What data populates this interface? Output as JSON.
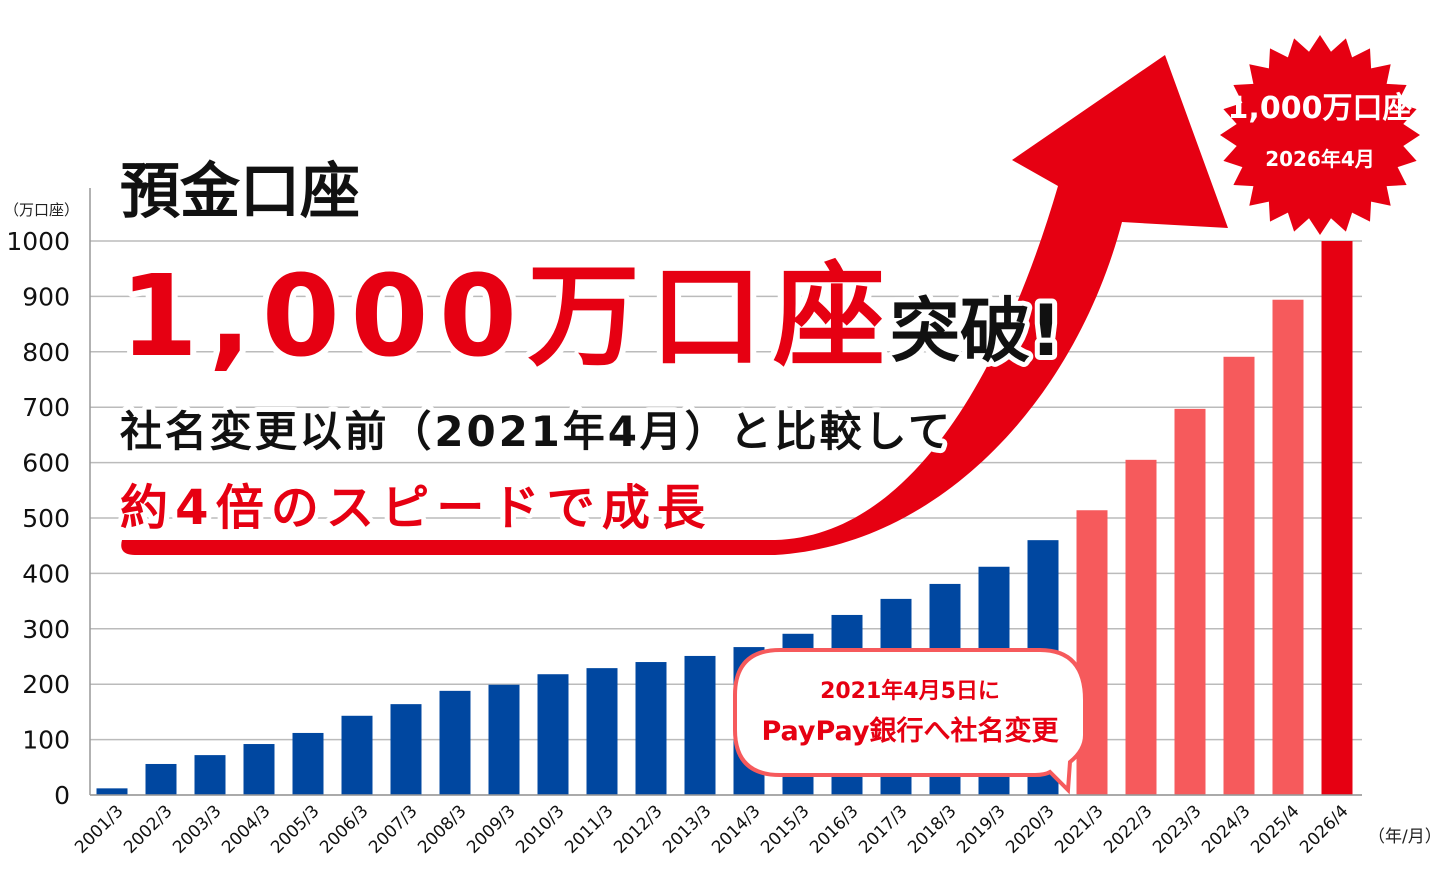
{
  "chart_data": {
    "type": "bar",
    "y_unit": "（万口座）",
    "x_unit": "（年/月）",
    "headline": "預金口座",
    "headline_big": "1,000万口座",
    "headline_suffix": "突破!",
    "subline": "社名変更以前（2021年4月）と比較して",
    "subline_red": "約4倍のスピードで成長",
    "callout": [
      "2021年4月5日に",
      "PayPay銀行へ社名変更"
    ],
    "badge": [
      "1,000万口座",
      "2026年4月"
    ],
    "categories": [
      "2001/3",
      "2002/3",
      "2003/3",
      "2004/3",
      "2005/3",
      "2006/3",
      "2007/3",
      "2008/3",
      "2009/3",
      "2010/3",
      "2011/3",
      "2012/3",
      "2013/3",
      "2014/3",
      "2015/3",
      "2016/3",
      "2017/3",
      "2018/3",
      "2019/3",
      "2020/3",
      "2021/3",
      "2022/3",
      "2023/3",
      "2024/3",
      "2025/4",
      "2026/4"
    ],
    "values": [
      12,
      56,
      72,
      92,
      112,
      143,
      164,
      188,
      199,
      218,
      229,
      240,
      251,
      267,
      291,
      325,
      354,
      381,
      412,
      460,
      514,
      605,
      697,
      791,
      894,
      1000
    ],
    "colors": [
      "#0047a0",
      "#0047a0",
      "#0047a0",
      "#0047a0",
      "#0047a0",
      "#0047a0",
      "#0047a0",
      "#0047a0",
      "#0047a0",
      "#0047a0",
      "#0047a0",
      "#0047a0",
      "#0047a0",
      "#0047a0",
      "#0047a0",
      "#0047a0",
      "#0047a0",
      "#0047a0",
      "#0047a0",
      "#0047a0",
      "#f65a5c",
      "#f65a5c",
      "#f65a5c",
      "#f65a5c",
      "#f65a5c",
      "#e60012"
    ],
    "ylim": [
      0,
      1000
    ],
    "yticks": [
      0,
      100,
      200,
      300,
      400,
      500,
      600,
      700,
      800,
      900,
      1000
    ],
    "grid": true
  }
}
